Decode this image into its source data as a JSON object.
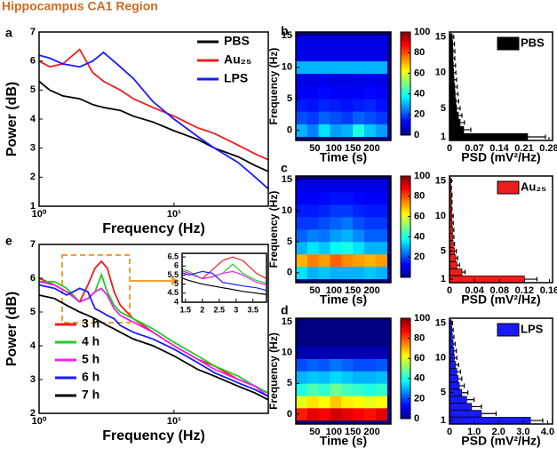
{
  "title": "Hippocampus CA1 Region",
  "chart_data": [
    {
      "type": "line",
      "panel": "a",
      "xlog": true,
      "xlabel": "Frequency (Hz)",
      "ylabel": "Power (dB)",
      "xlim": [
        1,
        50
      ],
      "xticks": [
        {
          "value": 1,
          "label": "10⁰"
        },
        {
          "value": 10,
          "label": "10¹"
        }
      ],
      "ylim": [
        1,
        7
      ],
      "yticks": [
        1,
        2,
        3,
        4,
        5,
        6,
        7
      ],
      "legend": "upper right",
      "x": [
        1,
        1.2,
        1.5,
        2,
        2.5,
        3,
        4,
        5,
        7,
        10,
        15,
        20,
        30,
        40,
        50
      ],
      "series": [
        {
          "name": "PBS",
          "color": "#000000",
          "values": [
            5.3,
            5.0,
            4.8,
            4.7,
            4.5,
            4.4,
            4.3,
            4.1,
            3.9,
            3.6,
            3.3,
            3.0,
            2.7,
            2.4,
            2.2
          ]
        },
        {
          "name": "Au₂₅",
          "color": "#ee1c1c",
          "values": [
            6.0,
            5.8,
            5.9,
            6.4,
            5.6,
            5.3,
            5.0,
            4.7,
            4.4,
            4.1,
            3.7,
            3.5,
            3.1,
            2.8,
            2.6
          ]
        },
        {
          "name": "LPS",
          "color": "#1a1aff",
          "values": [
            6.2,
            6.1,
            5.9,
            5.8,
            6.0,
            6.3,
            5.8,
            5.4,
            4.6,
            4.0,
            3.4,
            3.0,
            2.5,
            2.0,
            1.6
          ]
        }
      ]
    },
    {
      "type": "heatmap",
      "panel": "b",
      "xlabel": "Time (s)",
      "ylabel": "Frequency (Hz)",
      "x": [
        15,
        45,
        75,
        105,
        135,
        165,
        195,
        225
      ],
      "y": [
        0,
        2,
        4,
        6,
        8,
        10,
        12,
        14
      ],
      "values": [
        [
          30,
          25,
          35,
          28,
          30,
          40,
          32,
          28
        ],
        [
          20,
          18,
          22,
          20,
          18,
          22,
          20,
          18
        ],
        [
          15,
          14,
          16,
          15,
          14,
          15,
          16,
          14
        ],
        [
          12,
          12,
          13,
          12,
          12,
          12,
          13,
          12
        ],
        [
          10,
          10,
          11,
          10,
          10,
          10,
          11,
          10
        ],
        [
          30,
          30,
          30,
          30,
          30,
          30,
          30,
          30
        ],
        [
          10,
          10,
          10,
          10,
          10,
          10,
          10,
          10
        ],
        [
          10,
          10,
          10,
          10,
          10,
          10,
          10,
          10
        ]
      ],
      "xlim": [
        0,
        250
      ],
      "xticks": [
        50,
        100,
        150,
        200
      ],
      "ylim": [
        -1.6,
        15.6
      ],
      "yticks": [
        0,
        5,
        10,
        15
      ],
      "colormap": "jet",
      "clim": [
        0,
        100
      ],
      "cticks": [
        0,
        20,
        40,
        60,
        80,
        100
      ]
    },
    {
      "type": "barh",
      "xlabel": "PSD (mV²/Hz)",
      "legend": "upper right",
      "y": [
        1,
        2,
        3,
        4,
        5,
        6,
        7,
        8,
        9,
        10,
        11,
        12,
        13,
        14,
        15
      ],
      "series": [
        {
          "name": "PBS",
          "color": "#000000",
          "values": [
            0.22,
            0.04,
            0.03,
            0.025,
            0.02,
            0.018,
            0.016,
            0.015,
            0.013,
            0.012,
            0.011,
            0.01,
            0.01,
            0.009,
            0.008
          ],
          "errors": [
            0.05,
            0.02,
            0.012,
            0.01,
            0.01,
            0.008,
            0.008,
            0.007,
            0.007,
            0.006,
            0.006,
            0.005,
            0.005,
            0.005,
            0.004
          ]
        }
      ],
      "xlim": [
        0,
        0.29
      ],
      "xticks": [
        0,
        0.07,
        0.14,
        0.21,
        0.28
      ],
      "ylim": [
        0.5,
        15.7
      ],
      "yticks": [
        1,
        5,
        10,
        15
      ]
    },
    {
      "type": "heatmap",
      "panel": "c",
      "xlabel": "Time (s)",
      "ylabel": "Frequency (Hz)",
      "x": [
        15,
        45,
        75,
        105,
        135,
        165,
        195,
        225
      ],
      "y": [
        0,
        2,
        4,
        6,
        8,
        10,
        12,
        14
      ],
      "values": [
        [
          35,
          30,
          32,
          30,
          30,
          30,
          32,
          30
        ],
        [
          70,
          75,
          72,
          78,
          74,
          72,
          70,
          72
        ],
        [
          30,
          35,
          32,
          38,
          40,
          35,
          30,
          30
        ],
        [
          22,
          25,
          24,
          28,
          30,
          26,
          22,
          22
        ],
        [
          18,
          18,
          20,
          22,
          24,
          20,
          18,
          18
        ],
        [
          15,
          15,
          16,
          18,
          18,
          16,
          15,
          15
        ],
        [
          12,
          12,
          13,
          14,
          14,
          13,
          12,
          12
        ],
        [
          10,
          10,
          10,
          10,
          10,
          10,
          10,
          10
        ]
      ],
      "xlim": [
        0,
        250
      ],
      "xticks": [
        50,
        100,
        150,
        200
      ],
      "ylim": [
        -1.6,
        15.6
      ],
      "yticks": [
        0,
        5,
        10,
        15
      ],
      "colormap": "jet",
      "clim": [
        0,
        100
      ],
      "cticks": [
        20,
        40,
        60,
        80,
        100
      ]
    },
    {
      "type": "barh",
      "xlabel": "PSD (mV²/Hz)",
      "legend": "upper right",
      "y": [
        1,
        2,
        3,
        4,
        5,
        6,
        7,
        8,
        9,
        10,
        11,
        12,
        13,
        14,
        15
      ],
      "series": [
        {
          "name": "Au₂₅",
          "color": "#ee1c1c",
          "values": [
            0.12,
            0.02,
            0.012,
            0.01,
            0.008,
            0.006,
            0.005,
            0.005,
            0.004,
            0.004,
            0.003,
            0.003,
            0.003,
            0.002,
            0.002
          ],
          "errors": [
            0.02,
            0.005,
            0.004,
            0.003,
            0.003,
            0.002,
            0.002,
            0.002,
            0.002,
            0.002,
            0.001,
            0.001,
            0.001,
            0.001,
            0.001
          ]
        }
      ],
      "xlim": [
        0,
        0.165
      ],
      "xticks": [
        0,
        0.04,
        0.08,
        0.12,
        0.16
      ],
      "ylim": [
        0.5,
        15.7
      ],
      "yticks": [
        1,
        5,
        10,
        15
      ]
    },
    {
      "type": "heatmap",
      "panel": "d",
      "xlabel": "Time (s)",
      "ylabel": "Frequency (Hz)",
      "x": [
        15,
        45,
        75,
        105,
        135,
        165,
        195,
        225
      ],
      "y": [
        0,
        2,
        4,
        6,
        8,
        10,
        12,
        14
      ],
      "values": [
        [
          85,
          90,
          88,
          92,
          90,
          88,
          86,
          90
        ],
        [
          60,
          65,
          62,
          68,
          64,
          62,
          60,
          62
        ],
        [
          40,
          45,
          42,
          48,
          44,
          42,
          40,
          42
        ],
        [
          30,
          32,
          31,
          34,
          32,
          30,
          30,
          31
        ],
        [
          20,
          22,
          21,
          24,
          22,
          20,
          20,
          21
        ],
        [
          5,
          5,
          5,
          5,
          5,
          5,
          5,
          5
        ],
        [
          0,
          0,
          0,
          0,
          0,
          0,
          0,
          0
        ],
        [
          0,
          0,
          0,
          0,
          0,
          0,
          0,
          0
        ]
      ],
      "xlim": [
        0,
        250
      ],
      "xticks": [
        50,
        100,
        150,
        200
      ],
      "ylim": [
        -1.6,
        15.6
      ],
      "yticks": [
        0,
        5,
        10,
        15
      ],
      "colormap": "jet",
      "clim": [
        0,
        100
      ],
      "cticks": [
        0,
        20,
        40,
        60,
        80,
        100
      ]
    },
    {
      "type": "barh",
      "xlabel": "PSD (mV²/Hz)",
      "legend": "upper right",
      "y": [
        1,
        2,
        3,
        4,
        5,
        6,
        7,
        8,
        9,
        10,
        11,
        12,
        13,
        14,
        15
      ],
      "series": [
        {
          "name": "LPS",
          "color": "#1a1aff",
          "values": [
            3.3,
            1.3,
            0.9,
            0.7,
            0.5,
            0.4,
            0.35,
            0.3,
            0.25,
            0.2,
            0.18,
            0.15,
            0.12,
            0.1,
            0.08
          ],
          "errors": [
            0.5,
            0.6,
            0.4,
            0.3,
            0.25,
            0.2,
            0.15,
            0.15,
            0.12,
            0.1,
            0.1,
            0.08,
            0.06,
            0.05,
            0.04
          ]
        }
      ],
      "xlim": [
        0,
        4.2
      ],
      "xticks": [
        0,
        {
          "value": 1,
          "label": "1.0"
        },
        {
          "value": 2,
          "label": "2.0"
        },
        {
          "value": 3,
          "label": "3.0"
        },
        {
          "value": 4,
          "label": "4.0"
        }
      ],
      "ylim": [
        0.5,
        15.7
      ],
      "yticks": [
        1,
        5,
        10,
        15
      ]
    },
    {
      "type": "line",
      "panel": "e",
      "xlog": true,
      "xlabel": "Frequency (Hz)",
      "ylabel": "Power (dB)",
      "xlim": [
        1,
        50
      ],
      "xticks": [
        {
          "value": 1,
          "label": "10⁰"
        },
        {
          "value": 10,
          "label": "10¹"
        }
      ],
      "ylim": [
        2,
        7
      ],
      "yticks": [
        2,
        3,
        4,
        5,
        6,
        7
      ],
      "legend": "lower left",
      "x": [
        1,
        1.3,
        1.6,
        2,
        2.3,
        2.6,
        2.9,
        3.2,
        3.6,
        4,
        5,
        7,
        10,
        15,
        20,
        30,
        40,
        50
      ],
      "series": [
        {
          "name": "3 h",
          "color": "#ee1c1c",
          "values": [
            6.0,
            5.8,
            5.6,
            5.3,
            5.8,
            6.3,
            6.5,
            6.3,
            5.6,
            5.2,
            4.8,
            4.4,
            4.0,
            3.6,
            3.4,
            3.0,
            2.8,
            2.6
          ]
        },
        {
          "name": "4 h",
          "color": "#22cc22",
          "values": [
            5.9,
            5.9,
            5.7,
            5.3,
            5.4,
            5.6,
            6.1,
            5.6,
            5.2,
            5.0,
            4.8,
            4.5,
            4.1,
            3.7,
            3.4,
            3.1,
            2.8,
            2.6
          ]
        },
        {
          "name": "5 h",
          "color": "#ee22ee",
          "values": [
            5.9,
            5.8,
            5.6,
            5.3,
            5.4,
            5.6,
            5.7,
            5.5,
            5.1,
            4.9,
            4.7,
            4.4,
            4.0,
            3.6,
            3.3,
            3.0,
            2.8,
            2.5
          ]
        },
        {
          "name": "6 h",
          "color": "#1a1aff",
          "values": [
            5.8,
            5.7,
            5.5,
            5.7,
            5.6,
            5.1,
            5.0,
            4.9,
            4.8,
            4.6,
            4.4,
            4.2,
            3.9,
            3.5,
            3.2,
            2.9,
            2.7,
            2.5
          ]
        },
        {
          "name": "7 h",
          "color": "#000000",
          "values": [
            5.5,
            5.4,
            5.2,
            5.0,
            4.9,
            4.8,
            4.7,
            4.6,
            4.5,
            4.4,
            4.2,
            4.0,
            3.7,
            3.3,
            3.1,
            2.8,
            2.6,
            2.4
          ]
        }
      ],
      "inset": {
        "xlim": [
          1.4,
          3.9
        ],
        "xticks": [
          1.5,
          2,
          2.5,
          3,
          3.5
        ],
        "ylim": [
          4,
          6.7
        ],
        "yticks": [
          4,
          4.5,
          5,
          5.5,
          6,
          6.5
        ]
      }
    }
  ]
}
